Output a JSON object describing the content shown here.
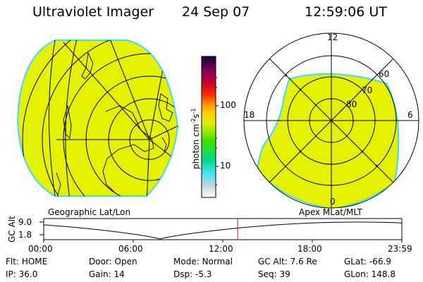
{
  "header": {
    "instrument": "Ultraviolet Imager",
    "date": "24 Sep 07",
    "time": "12:59:06 UT"
  },
  "colors": {
    "fill": "#e4f200",
    "edge": "#40d8ff",
    "marker": "#ff0000"
  },
  "left_map": {
    "label": "Geographic Lat/Lon"
  },
  "right_map": {
    "label": "Apex MLat/MLT",
    "mlt_labels": [
      "12",
      "18",
      "6",
      "0"
    ],
    "mlat_labels": [
      "60",
      "70",
      "80"
    ]
  },
  "colorbar": {
    "title": "photon cm",
    "title_sup1": "-2",
    "title_mid": "s",
    "title_sup2": "-1",
    "ticks": [
      "100",
      "10"
    ],
    "log_range": [
      2.4,
      600
    ]
  },
  "altitude_plot": {
    "ylabel": "GC Alt",
    "yticks": [
      "9.0",
      "1.8"
    ],
    "xticks": [
      "00:00",
      "06:00",
      "12:00",
      "18:00",
      "23:59"
    ],
    "current_hour": 13.0
  },
  "status": {
    "row1": [
      {
        "label": "Flt:",
        "value": "HOME"
      },
      {
        "label": "Door:",
        "value": "Open"
      },
      {
        "label": "Mode:",
        "value": "Normal"
      },
      {
        "label": "GC Alt:",
        "value": "7.6 Re"
      },
      {
        "label": "GLat:",
        "value": "-66.9"
      }
    ],
    "row2": [
      {
        "label": "IP:",
        "value": "36.0"
      },
      {
        "label": "Gain:",
        "value": "14"
      },
      {
        "label": "Dsp:",
        "value": "-5.3"
      },
      {
        "label": "Seq:",
        "value": "39"
      },
      {
        "label": "GLon:",
        "value": "148.8"
      }
    ]
  }
}
